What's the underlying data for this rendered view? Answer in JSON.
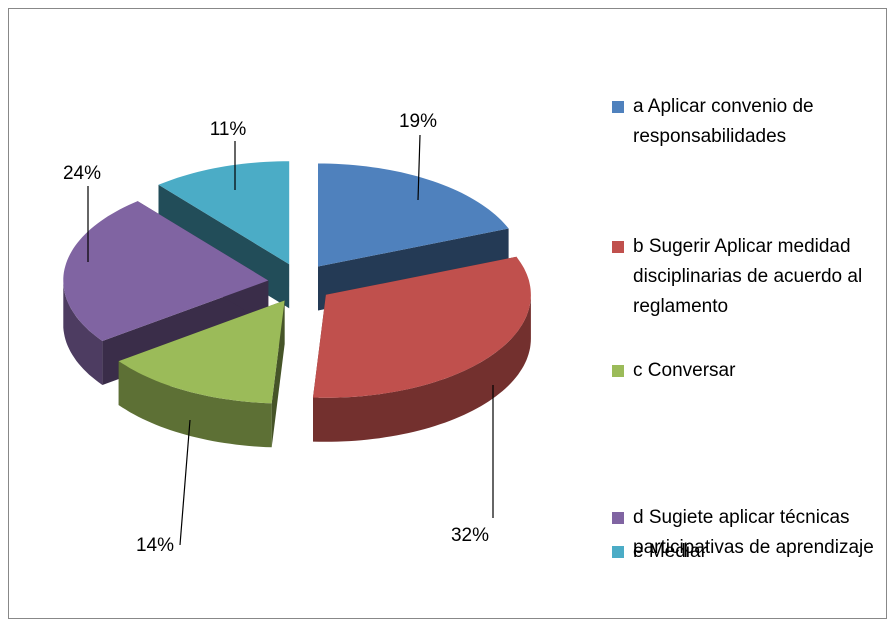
{
  "chart_data": {
    "type": "pie",
    "categories": [
      "a Aplicar convenio de responsabilidades",
      "b Sugerir Aplicar medidad disciplinarias de acuerdo al reglamento",
      "c Conversar",
      "d Sugiete aplicar técnicas participativas de aprendizaje",
      "e Mediar"
    ],
    "values": [
      19,
      32,
      14,
      24,
      11
    ],
    "value_labels": [
      "19%",
      "32%",
      "14%",
      "24%",
      "11%"
    ],
    "colors": [
      "#4f81bd",
      "#c0504d",
      "#9bbb59",
      "#8064a2",
      "#4bacc6"
    ]
  }
}
